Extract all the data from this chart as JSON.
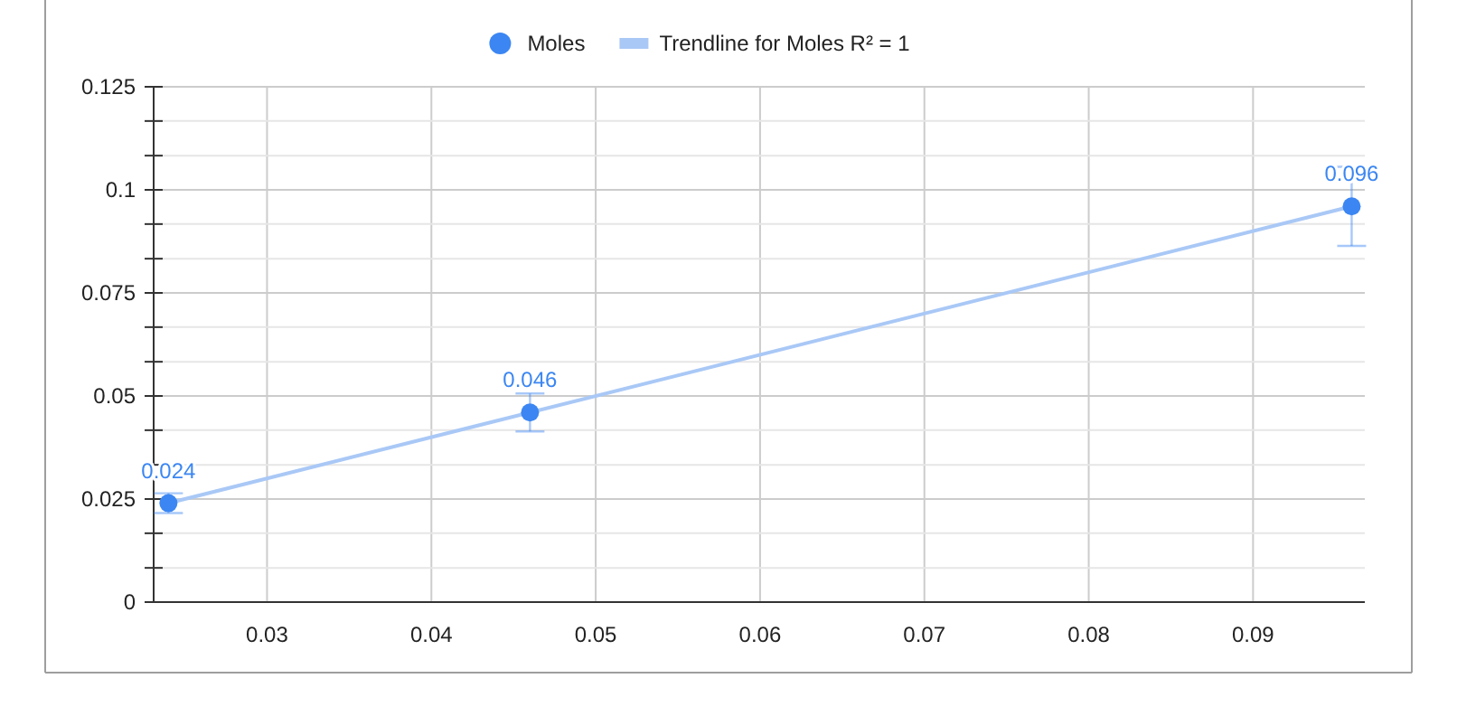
{
  "chart_data": {
    "type": "scatter",
    "legend": "top",
    "grid": true,
    "xlim": [
      0.0231,
      0.0968
    ],
    "xticks": [
      0.03,
      0.04,
      0.05,
      0.06,
      0.07,
      0.08,
      0.09
    ],
    "ylim": [
      0,
      0.125
    ],
    "yticks": [
      0,
      {
        "value": 0.0083,
        "label": null
      },
      {
        "value": 0.0167,
        "label": null
      },
      0.025,
      {
        "value": 0.0333,
        "label": null
      },
      {
        "value": 0.0417,
        "label": null
      },
      0.05,
      {
        "value": 0.0583,
        "label": null
      },
      {
        "value": 0.0667,
        "label": null
      },
      0.075,
      {
        "value": 0.0833,
        "label": null
      },
      {
        "value": 0.0917,
        "label": null
      },
      0.1,
      {
        "value": 0.1083,
        "label": null
      },
      {
        "value": 0.1167,
        "label": null
      },
      0.125
    ],
    "x": [
      0.024,
      0.046,
      0.096
    ],
    "series": [
      {
        "name": "Moles",
        "marker": "circle",
        "color": "#3b86f2",
        "values": [
          0.024,
          0.046,
          0.096
        ],
        "errors": [
          0.0024,
          0.0046,
          0.0096
        ],
        "value_labels": [
          "0.024",
          "0.046",
          "0.096"
        ]
      },
      {
        "name": "Trendline for Moles R² = 1",
        "type": "line",
        "color": "#a9c8f6",
        "x": [
          0.024,
          0.096
        ],
        "values": [
          0.024,
          0.096
        ]
      }
    ]
  }
}
